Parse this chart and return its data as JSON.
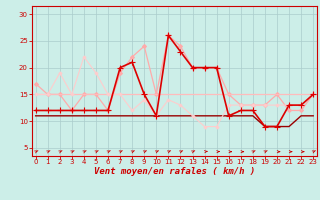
{
  "xlabel": "Vent moyen/en rafales ( km/h )",
  "bg_color": "#cceee8",
  "grid_color": "#aacccc",
  "x_ticks": [
    0,
    1,
    2,
    3,
    4,
    5,
    6,
    7,
    8,
    9,
    10,
    11,
    12,
    13,
    14,
    15,
    16,
    17,
    18,
    19,
    20,
    21,
    22,
    23
  ],
  "y_ticks": [
    5,
    10,
    15,
    20,
    25,
    30
  ],
  "xlim": [
    -0.3,
    23.3
  ],
  "ylim": [
    3.5,
    31.5
  ],
  "lines": [
    {
      "x": [
        0,
        1,
        2,
        3,
        4,
        5,
        6,
        7,
        8,
        9,
        10,
        11,
        12,
        13,
        14,
        15,
        16,
        17,
        18,
        19,
        20,
        21,
        22,
        23
      ],
      "y": [
        17,
        15,
        15,
        12,
        15,
        15,
        12,
        19,
        22,
        24,
        15,
        26,
        24,
        20,
        20,
        20,
        15,
        13,
        13,
        13,
        15,
        12,
        12,
        15
      ],
      "color": "#ffaaaa",
      "lw": 0.9,
      "marker": "D",
      "ms": 2.0,
      "zorder": 2
    },
    {
      "x": [
        0,
        1,
        2,
        3,
        4,
        5,
        6,
        7,
        8,
        9,
        10,
        11,
        12,
        13,
        14,
        15,
        16,
        17,
        18,
        19,
        20,
        21,
        22,
        23
      ],
      "y": [
        15,
        15,
        15,
        15,
        15,
        15,
        15,
        15,
        15,
        15,
        15,
        15,
        15,
        15,
        15,
        15,
        15,
        15,
        15,
        15,
        15,
        15,
        15,
        15
      ],
      "color": "#ffbbbb",
      "lw": 0.9,
      "marker": null,
      "ms": 0,
      "zorder": 2
    },
    {
      "x": [
        0,
        1,
        2,
        3,
        4,
        5,
        6,
        7,
        8,
        9,
        10,
        11,
        12,
        13,
        14,
        15,
        16,
        17,
        18,
        19,
        20,
        21,
        22,
        23
      ],
      "y": [
        12,
        12,
        12,
        12,
        12,
        12,
        12,
        20,
        21,
        15,
        11,
        26,
        23,
        20,
        20,
        20,
        11,
        12,
        12,
        9,
        9,
        13,
        13,
        15
      ],
      "color": "#dd0000",
      "lw": 1.2,
      "marker": "+",
      "ms": 4,
      "zorder": 3
    },
    {
      "x": [
        0,
        1,
        2,
        3,
        4,
        5,
        6,
        7,
        8,
        9,
        10,
        11,
        12,
        13,
        14,
        15,
        16,
        17,
        18,
        19,
        20,
        21,
        22,
        23
      ],
      "y": [
        11,
        11,
        11,
        11,
        11,
        11,
        11,
        11,
        11,
        11,
        11,
        11,
        11,
        11,
        11,
        11,
        11,
        11,
        11,
        9,
        9,
        9,
        11,
        11
      ],
      "color": "#990000",
      "lw": 1.0,
      "marker": null,
      "ms": 0,
      "zorder": 2
    },
    {
      "x": [
        0,
        1,
        2,
        3,
        4,
        5,
        6,
        7,
        8,
        9,
        10,
        11,
        12,
        13,
        14,
        15,
        16,
        17,
        18,
        19,
        20,
        21,
        22,
        23
      ],
      "y": [
        15,
        15,
        19,
        15,
        22,
        19,
        15,
        15,
        12,
        14,
        11,
        14,
        13,
        11,
        9,
        9,
        13,
        13,
        13,
        13,
        13,
        13,
        13,
        15
      ],
      "color": "#ffcccc",
      "lw": 0.8,
      "marker": "D",
      "ms": 1.5,
      "zorder": 2
    }
  ],
  "arrow_angles": [
    45,
    45,
    45,
    45,
    45,
    45,
    45,
    45,
    45,
    45,
    45,
    45,
    45,
    45,
    20,
    10,
    0,
    0,
    45,
    45,
    0,
    0,
    0,
    45
  ],
  "arrow_color": "#cc0000",
  "axis_color": "#cc0000",
  "tick_color": "#cc0000",
  "tick_labelsize": 5.0,
  "xlabel_fontsize": 6.5,
  "xlabel_color": "#cc0000"
}
